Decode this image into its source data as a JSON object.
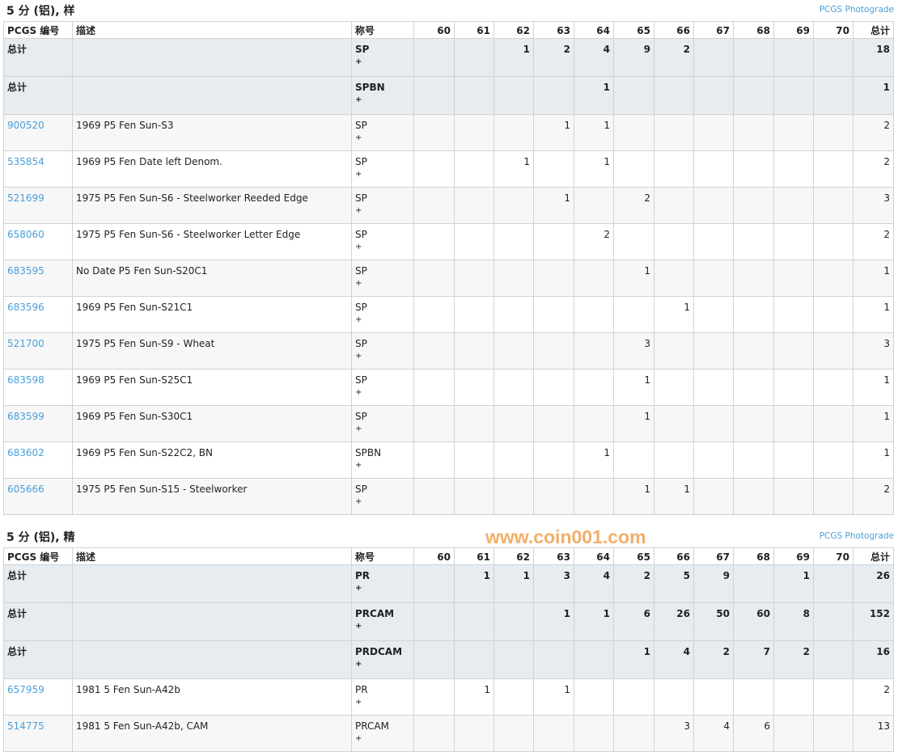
{
  "grade_headers": [
    "60",
    "61",
    "62",
    "63",
    "64",
    "65",
    "66",
    "67",
    "68",
    "69",
    "70"
  ],
  "col_headers": {
    "pcgs": "PCGS 编号",
    "desc": "描述",
    "desig": "称号",
    "total": "总计"
  },
  "plus": "+",
  "photograde": "PCGS Photograde",
  "watermark": "www.coin001.com",
  "sections": [
    {
      "title": "5 分 (铝), 样",
      "totals": [
        {
          "label": "总计",
          "desig": "SP",
          "grades": [
            "",
            "",
            "1",
            "2",
            "4",
            "9",
            "2",
            "",
            "",
            "",
            ""
          ],
          "total": "18"
        },
        {
          "label": "总计",
          "desig": "SPBN",
          "grades": [
            "",
            "",
            "",
            "",
            "1",
            "",
            "",
            "",
            "",
            "",
            ""
          ],
          "total": "1"
        }
      ],
      "rows": [
        {
          "pcgs": "900520",
          "desc": "1969 P5 Fen Sun-S3",
          "desig": "SP",
          "grades": [
            "",
            "",
            "",
            "1",
            "1",
            "",
            "",
            "",
            "",
            "",
            ""
          ],
          "total": "2"
        },
        {
          "pcgs": "535854",
          "desc": "1969 P5 Fen Date left Denom.",
          "desig": "SP",
          "grades": [
            "",
            "",
            "1",
            "",
            "1",
            "",
            "",
            "",
            "",
            "",
            ""
          ],
          "total": "2"
        },
        {
          "pcgs": "521699",
          "desc": "1975 P5 Fen Sun-S6 - Steelworker Reeded Edge",
          "desig": "SP",
          "grades": [
            "",
            "",
            "",
            "1",
            "",
            "2",
            "",
            "",
            "",
            "",
            ""
          ],
          "total": "3"
        },
        {
          "pcgs": "658060",
          "desc": "1975 P5 Fen Sun-S6 - Steelworker Letter Edge",
          "desig": "SP",
          "grades": [
            "",
            "",
            "",
            "",
            "2",
            "",
            "",
            "",
            "",
            "",
            ""
          ],
          "total": "2"
        },
        {
          "pcgs": "683595",
          "desc": "No Date P5 Fen Sun-S20C1",
          "desig": "SP",
          "grades": [
            "",
            "",
            "",
            "",
            "",
            "1",
            "",
            "",
            "",
            "",
            ""
          ],
          "total": "1"
        },
        {
          "pcgs": "683596",
          "desc": "1969 P5 Fen Sun-S21C1",
          "desig": "SP",
          "grades": [
            "",
            "",
            "",
            "",
            "",
            "",
            "1",
            "",
            "",
            "",
            ""
          ],
          "total": "1"
        },
        {
          "pcgs": "521700",
          "desc": "1975 P5 Fen Sun-S9 - Wheat",
          "desig": "SP",
          "grades": [
            "",
            "",
            "",
            "",
            "",
            "3",
            "",
            "",
            "",
            "",
            ""
          ],
          "total": "3"
        },
        {
          "pcgs": "683598",
          "desc": "1969 P5 Fen Sun-S25C1",
          "desig": "SP",
          "grades": [
            "",
            "",
            "",
            "",
            "",
            "1",
            "",
            "",
            "",
            "",
            ""
          ],
          "total": "1"
        },
        {
          "pcgs": "683599",
          "desc": "1969 P5 Fen Sun-S30C1",
          "desig": "SP",
          "grades": [
            "",
            "",
            "",
            "",
            "",
            "1",
            "",
            "",
            "",
            "",
            ""
          ],
          "total": "1"
        },
        {
          "pcgs": "683602",
          "desc": "1969 P5 Fen Sun-S22C2, BN",
          "desig": "SPBN",
          "grades": [
            "",
            "",
            "",
            "",
            "1",
            "",
            "",
            "",
            "",
            "",
            ""
          ],
          "total": "1"
        },
        {
          "pcgs": "605666",
          "desc": "1975 P5 Fen Sun-S15 - Steelworker",
          "desig": "SP",
          "grades": [
            "",
            "",
            "",
            "",
            "",
            "1",
            "1",
            "",
            "",
            "",
            ""
          ],
          "total": "2"
        }
      ]
    },
    {
      "title": "5 分 (铝), 精",
      "totals": [
        {
          "label": "总计",
          "desig": "PR",
          "grades": [
            "",
            "1",
            "1",
            "3",
            "4",
            "2",
            "5",
            "9",
            "",
            "1",
            ""
          ],
          "total": "26"
        },
        {
          "label": "总计",
          "desig": "PRCAM",
          "grades": [
            "",
            "",
            "",
            "1",
            "1",
            "6",
            "26",
            "50",
            "60",
            "8",
            ""
          ],
          "total": "152"
        },
        {
          "label": "总计",
          "desig": "PRDCAM",
          "grades": [
            "",
            "",
            "",
            "",
            "",
            "1",
            "4",
            "2",
            "7",
            "2",
            ""
          ],
          "total": "16"
        }
      ],
      "rows": [
        {
          "pcgs": "657959",
          "desc": "1981 5 Fen Sun-A42b",
          "desig": "PR",
          "grades": [
            "",
            "1",
            "",
            "1",
            "",
            "",
            "",
            "",
            "",
            "",
            ""
          ],
          "total": "2"
        },
        {
          "pcgs": "514775",
          "desc": "1981 5 Fen Sun-A42b, CAM",
          "desig": "PRCAM",
          "grades": [
            "",
            "",
            "",
            "",
            "",
            "",
            "3",
            "4",
            "6",
            "",
            ""
          ],
          "total": "13"
        }
      ]
    }
  ]
}
